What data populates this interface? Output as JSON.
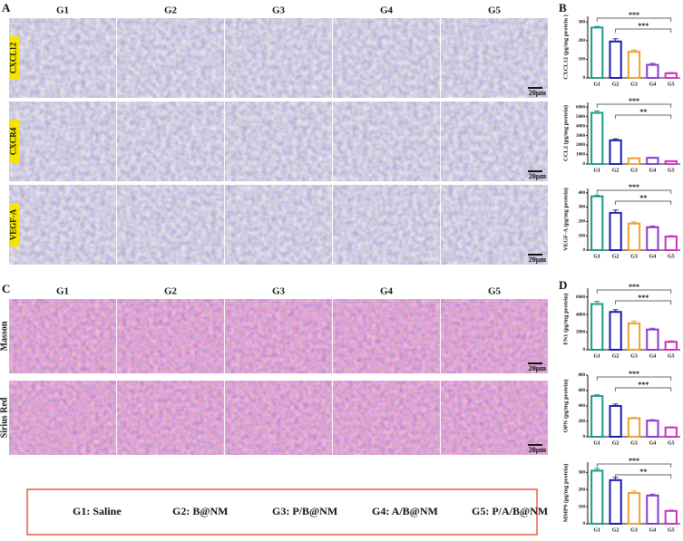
{
  "panel_A": {
    "label": "A",
    "groups": [
      "G1",
      "G2",
      "G3",
      "G4",
      "G5"
    ],
    "rows": [
      {
        "label": "CXCL12",
        "scale_bar": "20μm"
      },
      {
        "label": "CXCR4",
        "scale_bar": "20μm"
      },
      {
        "label": "VEGF-A",
        "scale_bar": "20μm"
      }
    ]
  },
  "panel_C": {
    "label": "C",
    "groups": [
      "G1",
      "G2",
      "G3",
      "G4",
      "G5"
    ],
    "rows": [
      {
        "label": "Masson",
        "scale_bar": "20μm"
      },
      {
        "label": "Sirius Red",
        "scale_bar": "20μm"
      }
    ]
  },
  "panel_B": {
    "label": "B",
    "charts": [
      {
        "type": "bar",
        "ylabel": "CXCL12 (pg/mg protein )",
        "categories": [
          "G1",
          "G2",
          "G3",
          "G4",
          "G5"
        ],
        "values": [
          270,
          195,
          140,
          70,
          25
        ],
        "errors": [
          6,
          15,
          10,
          8,
          4
        ],
        "colors": [
          "#1a9c8c",
          "#1c1cb0",
          "#f0a030",
          "#8a3ad0",
          "#d030c0"
        ],
        "ylim": [
          0,
          330
        ],
        "yticks": [
          0,
          100,
          200,
          300
        ],
        "annotations": [
          {
            "label": "***",
            "groups": [
              "G1",
              "G5"
            ]
          },
          {
            "label": "***",
            "groups": [
              "G2",
              "G5"
            ]
          }
        ]
      },
      {
        "type": "bar",
        "ylabel": "CCL2 (pg/mg protein)",
        "categories": [
          "G1",
          "G2",
          "G3",
          "G4",
          "G5"
        ],
        "values": [
          5400,
          2500,
          600,
          650,
          300
        ],
        "errors": [
          200,
          150,
          40,
          40,
          30
        ],
        "colors": [
          "#1a9c8c",
          "#1c1cb0",
          "#f0a030",
          "#8a3ad0",
          "#d030c0"
        ],
        "ylim": [
          0,
          6500
        ],
        "yticks": [
          0,
          1000,
          2000,
          3000,
          4000,
          5000,
          6000
        ],
        "annotations": [
          {
            "label": "***",
            "groups": [
              "G1",
              "G5"
            ]
          },
          {
            "label": "**",
            "groups": [
              "G2",
              "G5"
            ]
          }
        ]
      },
      {
        "type": "bar",
        "ylabel": "VEGF-A (pg/mg protein)",
        "categories": [
          "G1",
          "G2",
          "G3",
          "G4",
          "G5"
        ],
        "values": [
          375,
          260,
          185,
          160,
          95
        ],
        "errors": [
          8,
          20,
          12,
          8,
          5
        ],
        "colors": [
          "#1a9c8c",
          "#1c1cb0",
          "#f0a030",
          "#8a3ad0",
          "#d030c0"
        ],
        "ylim": [
          0,
          430
        ],
        "yticks": [
          0,
          100,
          200,
          300,
          400
        ],
        "annotations": [
          {
            "label": "***",
            "groups": [
              "G1",
              "G5"
            ]
          },
          {
            "label": "**",
            "groups": [
              "G2",
              "G5"
            ]
          }
        ]
      }
    ]
  },
  "panel_D": {
    "label": "D",
    "charts": [
      {
        "type": "bar",
        "ylabel": "FN1 (pg/mg protein)",
        "categories": [
          "G1",
          "G2",
          "G3",
          "G4",
          "G5"
        ],
        "values": [
          5200,
          4300,
          3000,
          2300,
          900
        ],
        "errors": [
          300,
          250,
          250,
          150,
          100
        ],
        "colors": [
          "#1a9c8c",
          "#1c1cb0",
          "#f0a030",
          "#8a3ad0",
          "#d030c0"
        ],
        "ylim": [
          0,
          7000
        ],
        "yticks": [
          0,
          2000,
          4000,
          6000
        ],
        "annotations": [
          {
            "label": "***",
            "groups": [
              "G1",
              "G5"
            ]
          },
          {
            "label": "***",
            "groups": [
              "G2",
              "G5"
            ]
          }
        ]
      },
      {
        "type": "bar",
        "ylabel": "OPN (pg/mg protein)",
        "categories": [
          "G1",
          "G2",
          "G3",
          "G4",
          "G5"
        ],
        "values": [
          530,
          400,
          240,
          210,
          120
        ],
        "errors": [
          15,
          25,
          12,
          12,
          8
        ],
        "colors": [
          "#1a9c8c",
          "#1c1cb0",
          "#f0a030",
          "#8a3ad0",
          "#d030c0"
        ],
        "ylim": [
          0,
          800
        ],
        "yticks": [
          0,
          200,
          400,
          600,
          800
        ],
        "annotations": [
          {
            "label": "***",
            "groups": [
              "G1",
              "G5"
            ]
          },
          {
            "label": "***",
            "groups": [
              "G2",
              "G5"
            ]
          }
        ]
      },
      {
        "type": "bar",
        "ylabel": "MMP9 (pg/mg protein)",
        "categories": [
          "G1",
          "G2",
          "G3",
          "G4",
          "G5"
        ],
        "values": [
          310,
          255,
          180,
          165,
          75
        ],
        "errors": [
          12,
          15,
          12,
          8,
          5
        ],
        "colors": [
          "#1a9c8c",
          "#1c1cb0",
          "#f0a030",
          "#8a3ad0",
          "#d030c0"
        ],
        "ylim": [
          0,
          360
        ],
        "yticks": [
          0,
          100,
          200,
          300
        ],
        "annotations": [
          {
            "label": "***",
            "groups": [
              "G1",
              "G5"
            ]
          },
          {
            "label": "**",
            "groups": [
              "G2",
              "G5"
            ]
          }
        ]
      }
    ]
  },
  "legend": [
    "G1: Saline",
    "G2: B@NM",
    "G3: P/B@NM",
    "G4: A/B@NM",
    "G5: P/A/B@NM"
  ]
}
